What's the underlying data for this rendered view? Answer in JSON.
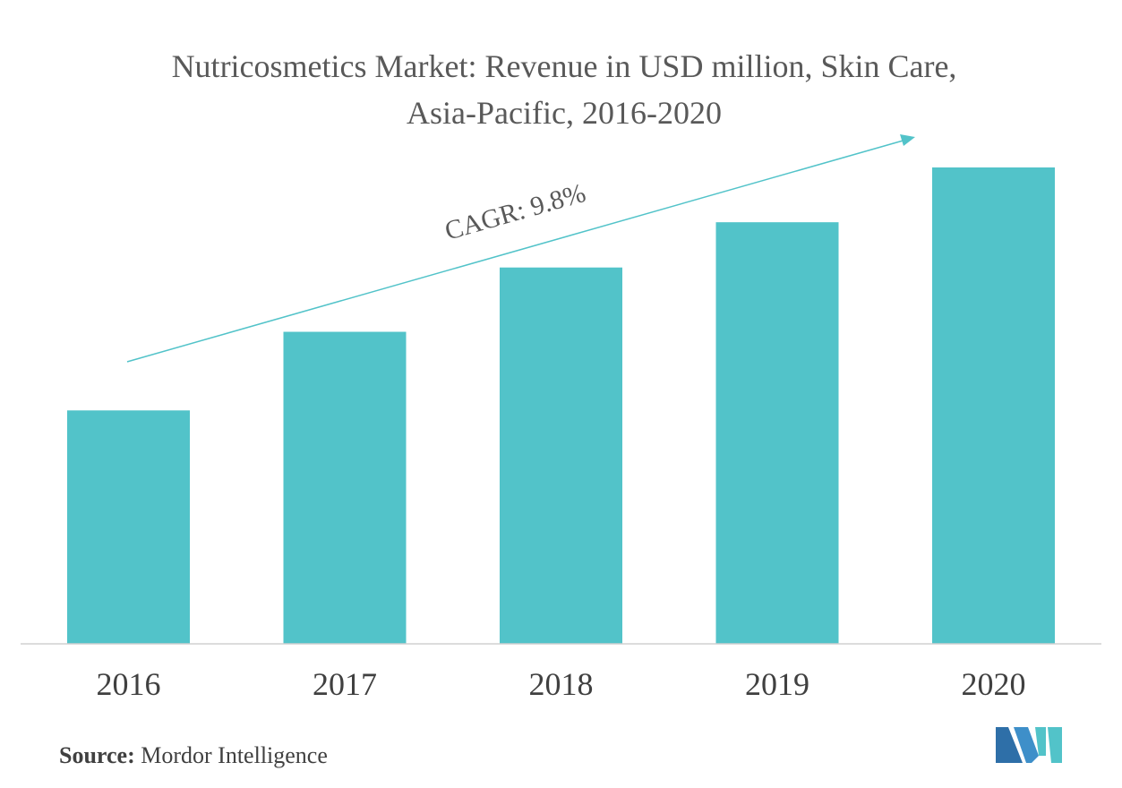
{
  "chart_data": {
    "type": "bar",
    "title": "Nutricosmetics Market: Revenue in USD million, Skin Care, Asia-Pacific, 2016-2020",
    "categories": [
      "2016",
      "2017",
      "2018",
      "2019",
      "2020"
    ],
    "values": [
      49,
      65.5,
      79,
      88.5,
      100
    ],
    "ylim": [
      0,
      100
    ],
    "grid": false,
    "bar_color": "#52C3C9",
    "annotation": "CAGR: 9.8%"
  },
  "source": {
    "label": "Source:",
    "text": "Mordor Intelligence"
  },
  "logo": {
    "icon": "mordor-intelligence-logo-icon"
  }
}
